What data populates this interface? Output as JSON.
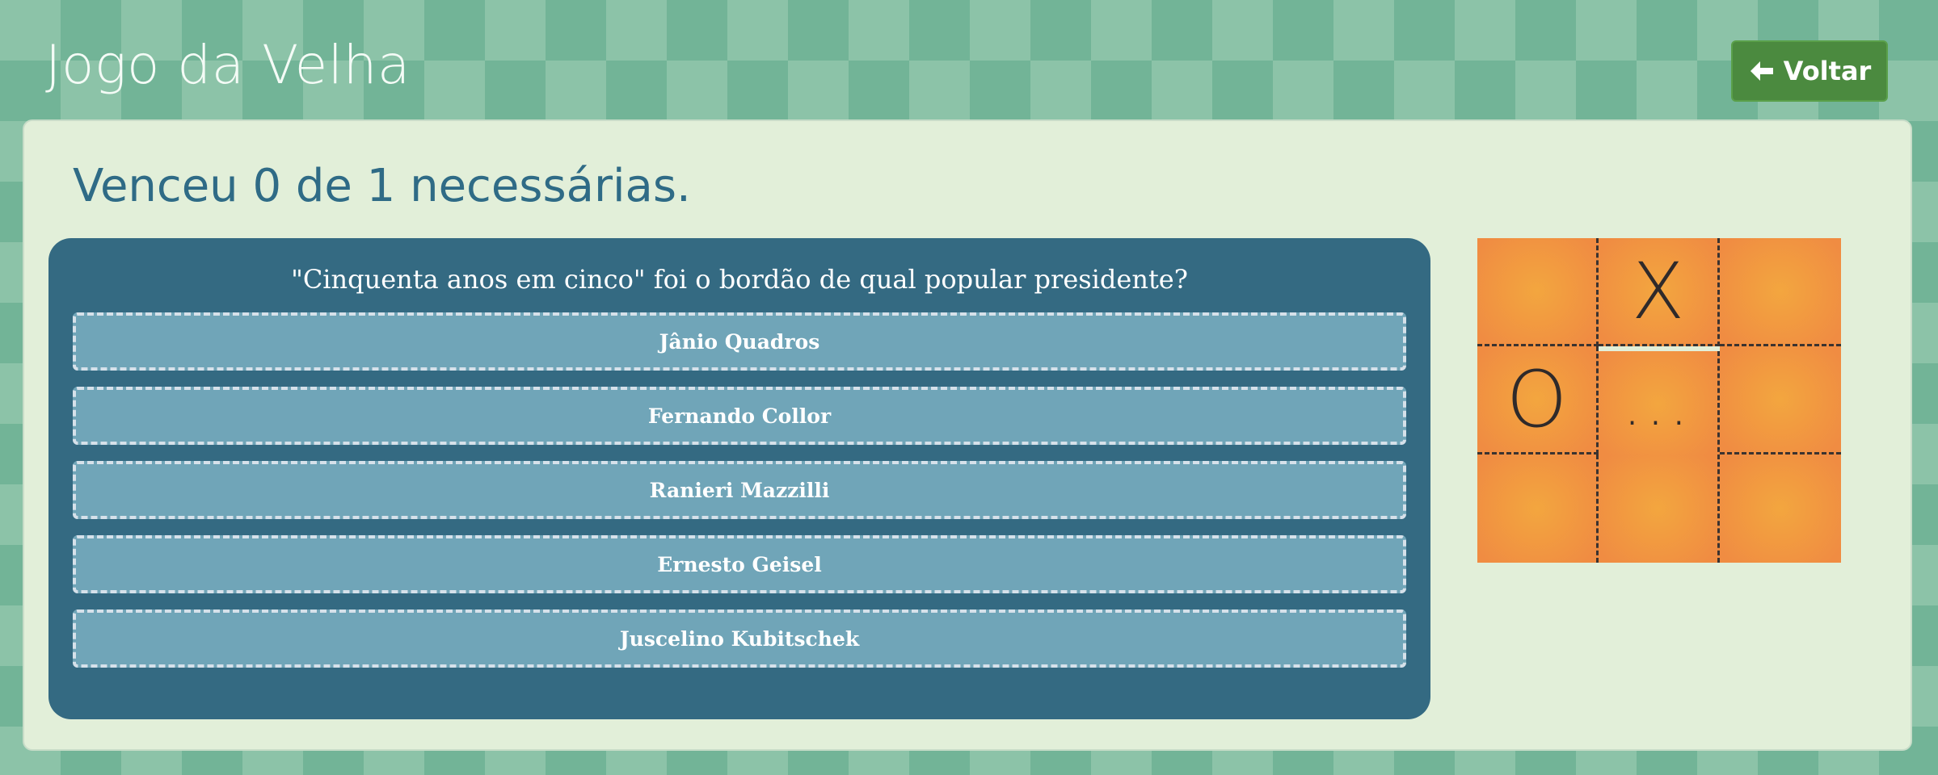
{
  "header": {
    "title": "Jogo da Velha",
    "back_label": "Voltar",
    "back_icon": "arrow-left-icon"
  },
  "main": {
    "score_text": "Venceu 0 de 1 necessárias.",
    "question": "\"Cinquenta anos em cinco\" foi o bordão de qual popular presidente?",
    "answers": [
      "Jânio Quadros",
      "Fernando Collor",
      "Ranieri Mazzilli",
      "Ernesto Geisel",
      "Juscelino Kubitschek"
    ]
  },
  "board": {
    "cells": [
      "",
      "X",
      "",
      "O",
      "...",
      "",
      "",
      "",
      ""
    ]
  },
  "colors": {
    "background": "#8cc3a8",
    "panel": "#e2efd9",
    "question_card": "#346a82",
    "answer_button": "#70a5b8",
    "back_button": "#4b8a3f",
    "board_orange": "#f08c42"
  }
}
